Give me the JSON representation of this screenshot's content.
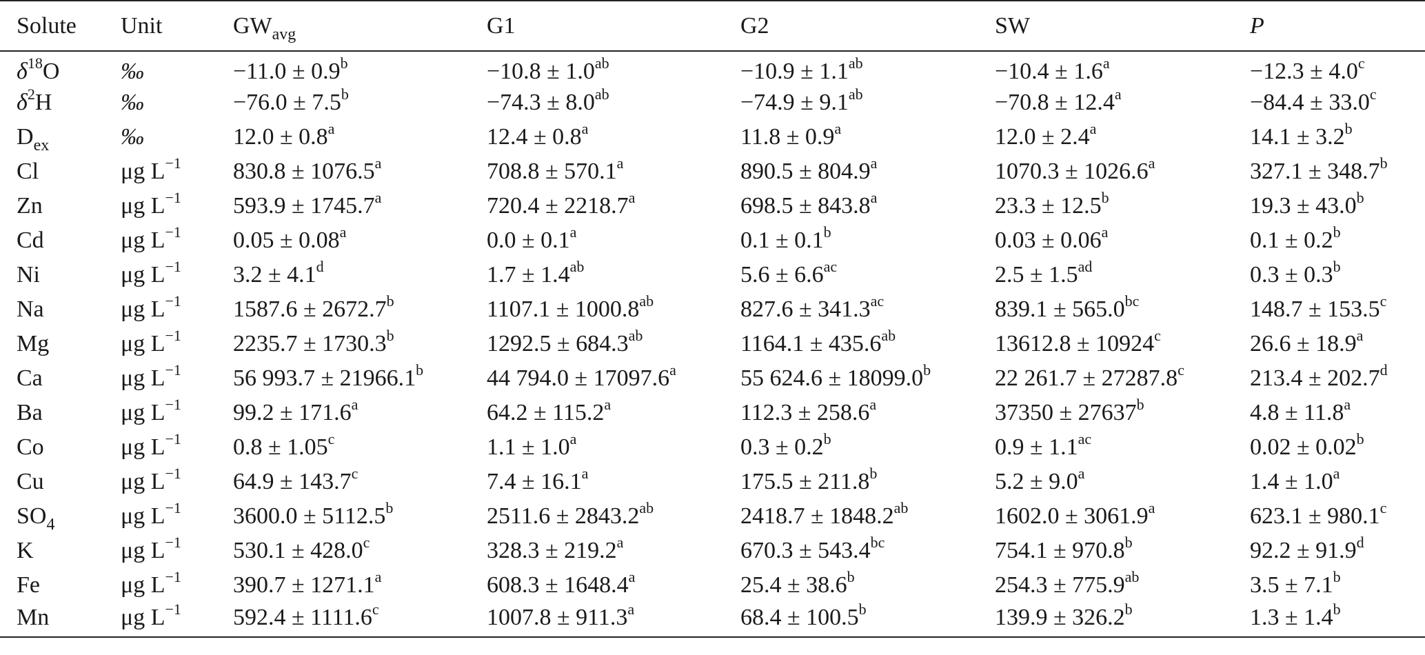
{
  "headers": [
    {
      "main": "Solute",
      "sub": ""
    },
    {
      "main": "Unit",
      "sub": ""
    },
    {
      "main": "GW",
      "sub": "avg"
    },
    {
      "main": "G1",
      "sub": ""
    },
    {
      "main": "G2",
      "sub": ""
    },
    {
      "main": "SW",
      "sub": ""
    },
    {
      "main": "P",
      "sub": ""
    }
  ],
  "rows": [
    {
      "solute": {
        "pre": "δ",
        "sup": "18",
        "post": "O",
        "sub": ""
      },
      "unit": {
        "main": "‰",
        "sup": ""
      },
      "cells": [
        {
          "v": "−11.0 ± 0.9",
          "s": "b"
        },
        {
          "v": "−10.8 ± 1.0",
          "s": "ab"
        },
        {
          "v": "−10.9 ± 1.1",
          "s": "ab"
        },
        {
          "v": "−10.4 ± 1.6",
          "s": "a"
        },
        {
          "v": "−12.3 ± 4.0",
          "s": "c"
        }
      ]
    },
    {
      "solute": {
        "pre": "δ",
        "sup": "2",
        "post": "H",
        "sub": ""
      },
      "unit": {
        "main": "‰",
        "sup": ""
      },
      "cells": [
        {
          "v": "−76.0 ± 7.5",
          "s": "b"
        },
        {
          "v": "−74.3 ± 8.0",
          "s": "ab"
        },
        {
          "v": "−74.9 ± 9.1",
          "s": "ab"
        },
        {
          "v": "−70.8 ± 12.4",
          "s": "a"
        },
        {
          "v": "−84.4 ± 33.0",
          "s": "c"
        }
      ]
    },
    {
      "solute": {
        "pre": "D",
        "sup": "",
        "post": "",
        "sub": "ex"
      },
      "unit": {
        "main": "‰",
        "sup": ""
      },
      "cells": [
        {
          "v": "12.0 ± 0.8",
          "s": "a"
        },
        {
          "v": "12.4 ± 0.8",
          "s": "a"
        },
        {
          "v": "11.8 ± 0.9",
          "s": "a"
        },
        {
          "v": "12.0 ± 2.4",
          "s": "a"
        },
        {
          "v": "14.1 ± 3.2",
          "s": "b"
        }
      ]
    },
    {
      "solute": {
        "pre": "Cl",
        "sup": "",
        "post": "",
        "sub": ""
      },
      "unit": {
        "main": "μg L",
        "sup": "−1"
      },
      "cells": [
        {
          "v": "830.8 ± 1076.5",
          "s": "a"
        },
        {
          "v": "708.8 ± 570.1",
          "s": "a"
        },
        {
          "v": "890.5 ± 804.9",
          "s": "a"
        },
        {
          "v": "1070.3 ± 1026.6",
          "s": "a"
        },
        {
          "v": "327.1 ± 348.7",
          "s": "b"
        }
      ]
    },
    {
      "solute": {
        "pre": "Zn",
        "sup": "",
        "post": "",
        "sub": ""
      },
      "unit": {
        "main": "μg L",
        "sup": "−1"
      },
      "cells": [
        {
          "v": "593.9 ± 1745.7",
          "s": "a"
        },
        {
          "v": "720.4 ± 2218.7",
          "s": "a"
        },
        {
          "v": "698.5 ± 843.8",
          "s": "a"
        },
        {
          "v": "23.3 ± 12.5",
          "s": "b"
        },
        {
          "v": "19.3 ± 43.0",
          "s": "b"
        }
      ]
    },
    {
      "solute": {
        "pre": "Cd",
        "sup": "",
        "post": "",
        "sub": ""
      },
      "unit": {
        "main": "μg L",
        "sup": "−1"
      },
      "cells": [
        {
          "v": "0.05 ± 0.08",
          "s": "a"
        },
        {
          "v": "0.0 ± 0.1",
          "s": "a"
        },
        {
          "v": "0.1 ± 0.1",
          "s": "b"
        },
        {
          "v": "0.03 ± 0.06",
          "s": "a"
        },
        {
          "v": "0.1 ± 0.2",
          "s": "b"
        }
      ]
    },
    {
      "solute": {
        "pre": "Ni",
        "sup": "",
        "post": "",
        "sub": ""
      },
      "unit": {
        "main": "μg L",
        "sup": "−1"
      },
      "cells": [
        {
          "v": "3.2 ± 4.1",
          "s": "d"
        },
        {
          "v": "1.7 ± 1.4",
          "s": "ab"
        },
        {
          "v": "5.6 ± 6.6",
          "s": "ac"
        },
        {
          "v": "2.5 ± 1.5",
          "s": "ad"
        },
        {
          "v": "0.3 ± 0.3",
          "s": "b"
        }
      ]
    },
    {
      "solute": {
        "pre": "Na",
        "sup": "",
        "post": "",
        "sub": ""
      },
      "unit": {
        "main": "μg L",
        "sup": "−1"
      },
      "cells": [
        {
          "v": "1587.6 ± 2672.7",
          "s": "b"
        },
        {
          "v": "1107.1 ± 1000.8",
          "s": "ab"
        },
        {
          "v": "827.6 ± 341.3",
          "s": "ac"
        },
        {
          "v": "839.1 ± 565.0",
          "s": "bc"
        },
        {
          "v": "148.7 ± 153.5",
          "s": "c"
        }
      ]
    },
    {
      "solute": {
        "pre": "Mg",
        "sup": "",
        "post": "",
        "sub": ""
      },
      "unit": {
        "main": "μg L",
        "sup": "−1"
      },
      "cells": [
        {
          "v": "2235.7 ± 1730.3",
          "s": "b"
        },
        {
          "v": "1292.5 ± 684.3",
          "s": "ab"
        },
        {
          "v": "1164.1 ± 435.6",
          "s": "ab"
        },
        {
          "v": "13612.8 ± 10924",
          "s": "c"
        },
        {
          "v": "26.6 ± 18.9",
          "s": "a"
        }
      ]
    },
    {
      "solute": {
        "pre": "Ca",
        "sup": "",
        "post": "",
        "sub": ""
      },
      "unit": {
        "main": "μg L",
        "sup": "−1"
      },
      "cells": [
        {
          "v": "56 993.7 ± 21966.1",
          "s": "b"
        },
        {
          "v": "44 794.0 ± 17097.6",
          "s": "a"
        },
        {
          "v": "55 624.6 ± 18099.0",
          "s": "b"
        },
        {
          "v": "22 261.7 ± 27287.8",
          "s": "c"
        },
        {
          "v": "213.4 ± 202.7",
          "s": "d"
        }
      ]
    },
    {
      "solute": {
        "pre": "Ba",
        "sup": "",
        "post": "",
        "sub": ""
      },
      "unit": {
        "main": "μg L",
        "sup": "−1"
      },
      "cells": [
        {
          "v": "99.2 ± 171.6",
          "s": "a"
        },
        {
          "v": "64.2 ± 115.2",
          "s": "a"
        },
        {
          "v": "112.3 ± 258.6",
          "s": "a"
        },
        {
          "v": "37350 ± 27637",
          "s": "b"
        },
        {
          "v": "4.8 ± 11.8",
          "s": "a"
        }
      ]
    },
    {
      "solute": {
        "pre": "Co",
        "sup": "",
        "post": "",
        "sub": ""
      },
      "unit": {
        "main": "μg L",
        "sup": "−1"
      },
      "cells": [
        {
          "v": "0.8 ± 1.05",
          "s": "c"
        },
        {
          "v": "1.1 ± 1.0",
          "s": "a"
        },
        {
          "v": "0.3 ± 0.2",
          "s": "b"
        },
        {
          "v": "0.9 ± 1.1",
          "s": "ac"
        },
        {
          "v": "0.02 ± 0.02",
          "s": "b"
        }
      ]
    },
    {
      "solute": {
        "pre": "Cu",
        "sup": "",
        "post": "",
        "sub": ""
      },
      "unit": {
        "main": "μg L",
        "sup": "−1"
      },
      "cells": [
        {
          "v": "64.9 ± 143.7",
          "s": "c"
        },
        {
          "v": "7.4 ± 16.1",
          "s": "a"
        },
        {
          "v": "175.5 ± 211.8",
          "s": "b"
        },
        {
          "v": "5.2 ± 9.0",
          "s": "a"
        },
        {
          "v": "1.4 ± 1.0",
          "s": "a"
        }
      ]
    },
    {
      "solute": {
        "pre": "SO",
        "sup": "",
        "post": "",
        "sub": "4"
      },
      "unit": {
        "main": "μg L",
        "sup": "−1"
      },
      "cells": [
        {
          "v": "3600.0 ± 5112.5",
          "s": "b"
        },
        {
          "v": "2511.6 ± 2843.2",
          "s": "ab"
        },
        {
          "v": "2418.7 ± 1848.2",
          "s": "ab"
        },
        {
          "v": "1602.0 ± 3061.9",
          "s": "a"
        },
        {
          "v": "623.1 ± 980.1",
          "s": "c"
        }
      ]
    },
    {
      "solute": {
        "pre": "K",
        "sup": "",
        "post": "",
        "sub": ""
      },
      "unit": {
        "main": "μg L",
        "sup": "−1"
      },
      "cells": [
        {
          "v": "530.1 ± 428.0",
          "s": "c"
        },
        {
          "v": "328.3 ± 219.2",
          "s": "a"
        },
        {
          "v": "670.3 ± 543.4",
          "s": "bc"
        },
        {
          "v": "754.1 ± 970.8",
          "s": "b"
        },
        {
          "v": "92.2 ± 91.9",
          "s": "d"
        }
      ]
    },
    {
      "solute": {
        "pre": "Fe",
        "sup": "",
        "post": "",
        "sub": ""
      },
      "unit": {
        "main": "μg L",
        "sup": "−1"
      },
      "cells": [
        {
          "v": "390.7 ± 1271.1",
          "s": "a"
        },
        {
          "v": "608.3 ± 1648.4",
          "s": "a"
        },
        {
          "v": "25.4 ± 38.6",
          "s": "b"
        },
        {
          "v": "254.3 ± 775.9",
          "s": "ab"
        },
        {
          "v": "3.5 ± 7.1",
          "s": "b"
        }
      ]
    },
    {
      "solute": {
        "pre": "Mn",
        "sup": "",
        "post": "",
        "sub": ""
      },
      "unit": {
        "main": "μg L",
        "sup": "−1"
      },
      "cells": [
        {
          "v": "592.4 ± 1111.6",
          "s": "c"
        },
        {
          "v": "1007.8 ± 911.3",
          "s": "a"
        },
        {
          "v": "68.4 ± 100.5",
          "s": "b"
        },
        {
          "v": "139.9 ± 326.2",
          "s": "b"
        },
        {
          "v": "1.3 ± 1.4",
          "s": "b"
        }
      ]
    }
  ]
}
